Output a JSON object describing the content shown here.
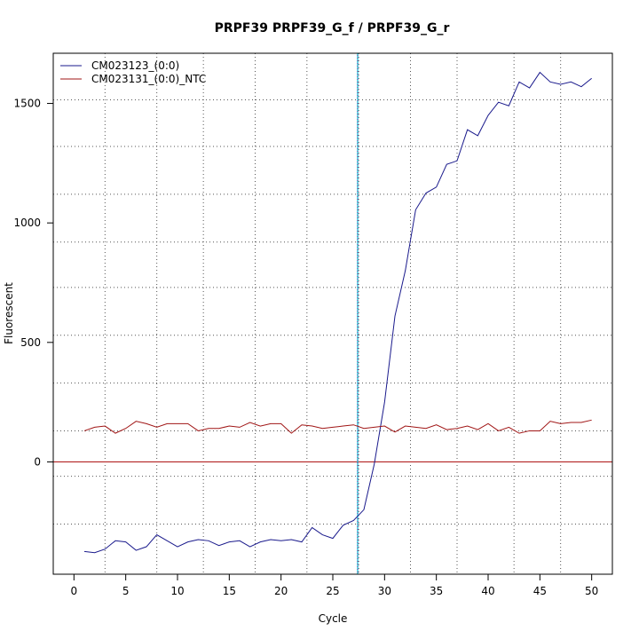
{
  "chart_data": {
    "type": "line",
    "title": "PRPF39  PRPF39_G_f / PRPF39_G_r",
    "xlabel": "Cycle",
    "ylabel": "Fluorescent",
    "xlim": [
      -2,
      52
    ],
    "ylim": [
      -470,
      1710
    ],
    "x_ticks": [
      0,
      5,
      10,
      15,
      20,
      25,
      30,
      35,
      40,
      45,
      50
    ],
    "y_ticks": [
      0,
      500,
      1000,
      1500
    ],
    "x_grid": [
      3,
      8,
      12.5,
      17.5,
      22.5,
      27.5,
      32.5,
      37,
      42.5,
      47
    ],
    "y_grid": [
      -260,
      -60,
      130,
      330,
      530,
      730,
      920,
      1120,
      1320,
      1515
    ],
    "grid": true,
    "legend_position": "top-left",
    "threshold_cycle": 27.4,
    "baseline": 0,
    "colors": {
      "series1": "#1a1a8c",
      "series2": "#a01515",
      "baseline": "#b22222",
      "threshold": "#00bcd4"
    },
    "x": [
      1,
      2,
      3,
      4,
      5,
      6,
      7,
      8,
      9,
      10,
      11,
      12,
      13,
      14,
      15,
      16,
      17,
      18,
      19,
      20,
      21,
      22,
      23,
      24,
      25,
      26,
      27,
      28,
      29,
      30,
      31,
      32,
      33,
      34,
      35,
      36,
      37,
      38,
      39,
      40,
      41,
      42,
      43,
      44,
      45,
      46,
      47,
      48,
      49,
      50
    ],
    "series": [
      {
        "name": "CM023123_(0:0)",
        "color": "#1a1a8c",
        "values": [
          -375,
          -380,
          -365,
          -330,
          -335,
          -370,
          -355,
          -305,
          -330,
          -355,
          -335,
          -325,
          -330,
          -350,
          -335,
          -330,
          -355,
          -335,
          -325,
          -330,
          -325,
          -335,
          -275,
          -305,
          -320,
          -265,
          -245,
          -200,
          -10,
          250,
          610,
          800,
          1055,
          1125,
          1150,
          1245,
          1260,
          1390,
          1365,
          1450,
          1505,
          1490,
          1590,
          1565,
          1630,
          1590,
          1580,
          1590,
          1570,
          1605
        ]
      },
      {
        "name": "CM023131_(0:0)_NTC",
        "color": "#a01515",
        "values": [
          130,
          145,
          150,
          120,
          140,
          170,
          160,
          145,
          160,
          160,
          160,
          130,
          140,
          140,
          150,
          145,
          165,
          150,
          160,
          160,
          120,
          155,
          150,
          140,
          145,
          150,
          155,
          140,
          145,
          150,
          125,
          150,
          145,
          140,
          155,
          135,
          140,
          150,
          135,
          160,
          130,
          145,
          120,
          130,
          130,
          170,
          160,
          165,
          165,
          175
        ]
      }
    ]
  }
}
